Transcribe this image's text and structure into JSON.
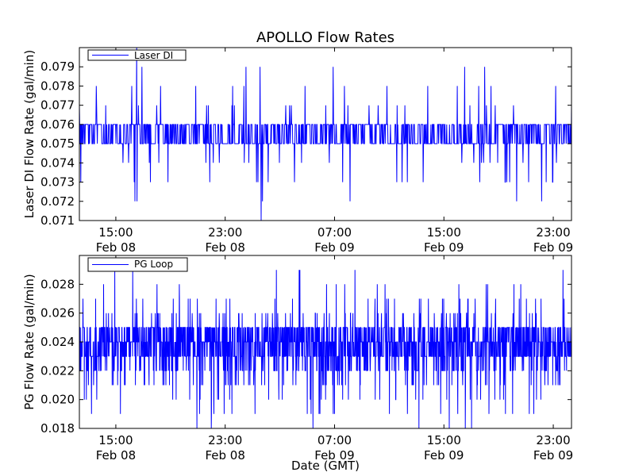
{
  "figure": {
    "title": "APOLLO Flow Rates",
    "xlabel": "Date (GMT)",
    "colors": {
      "line": "#0000ff",
      "axes": "#000000",
      "background": "#ffffff"
    }
  },
  "chart_data": [
    {
      "type": "line",
      "title": "APOLLO Flow Rates",
      "ylabel": "Laser DI Flow Rate (gal/min)",
      "xlabel": "",
      "legend": {
        "label": "Laser DI",
        "placement": "top-left"
      },
      "x_range_hours": [
        0,
        27
      ],
      "ylim": [
        0.071,
        0.08
      ],
      "y_ticks": [
        "0.071",
        "0.072",
        "0.073",
        "0.074",
        "0.075",
        "0.076",
        "0.077",
        "0.078",
        "0.079"
      ],
      "x_ticks": [
        {
          "hour": 2,
          "time": "15:00",
          "date": "Feb 08"
        },
        {
          "hour": 8,
          "time": "23:00",
          "date": "Feb 08"
        },
        {
          "hour": 14,
          "time": "07:00",
          "date": "Feb 09"
        },
        {
          "hour": 20,
          "time": "15:00",
          "date": "Feb 09"
        },
        {
          "hour": 26,
          "time": "23:00",
          "date": "Feb 09"
        }
      ],
      "series": [
        {
          "name": "Laser DI",
          "color": "#0000ff",
          "quantum": 0.001,
          "base_levels": [
            0.075,
            0.076
          ],
          "base_range": [
            0.075,
            0.076
          ],
          "spike_high_values": [
            0.077,
            0.078,
            0.079,
            0.08
          ],
          "spike_low_values": [
            0.074,
            0.073,
            0.072,
            0.071
          ]
        }
      ]
    },
    {
      "type": "line",
      "title": "",
      "ylabel": "PG Flow Rate (gal/min)",
      "xlabel": "Date (GMT)",
      "legend": {
        "label": "PG Loop",
        "placement": "top-left"
      },
      "x_range_hours": [
        0,
        27
      ],
      "ylim": [
        0.018,
        0.03
      ],
      "y_ticks": [
        "0.018",
        "0.020",
        "0.022",
        "0.024",
        "0.026",
        "0.028"
      ],
      "x_ticks": [
        {
          "hour": 2,
          "time": "15:00",
          "date": "Feb 08"
        },
        {
          "hour": 8,
          "time": "23:00",
          "date": "Feb 08"
        },
        {
          "hour": 14,
          "time": "07:00",
          "date": "Feb 09"
        },
        {
          "hour": 20,
          "time": "15:00",
          "date": "Feb 09"
        },
        {
          "hour": 26,
          "time": "23:00",
          "date": "Feb 09"
        }
      ],
      "series": [
        {
          "name": "PG Loop",
          "color": "#0000ff",
          "quantum": 0.001,
          "base_levels": [
            0.023,
            0.024,
            0.025
          ],
          "base_range": [
            0.022,
            0.025
          ],
          "spike_high_values": [
            0.026,
            0.027,
            0.028,
            0.029
          ],
          "spike_low_values": [
            0.021,
            0.02,
            0.019,
            0.018
          ]
        }
      ]
    }
  ]
}
